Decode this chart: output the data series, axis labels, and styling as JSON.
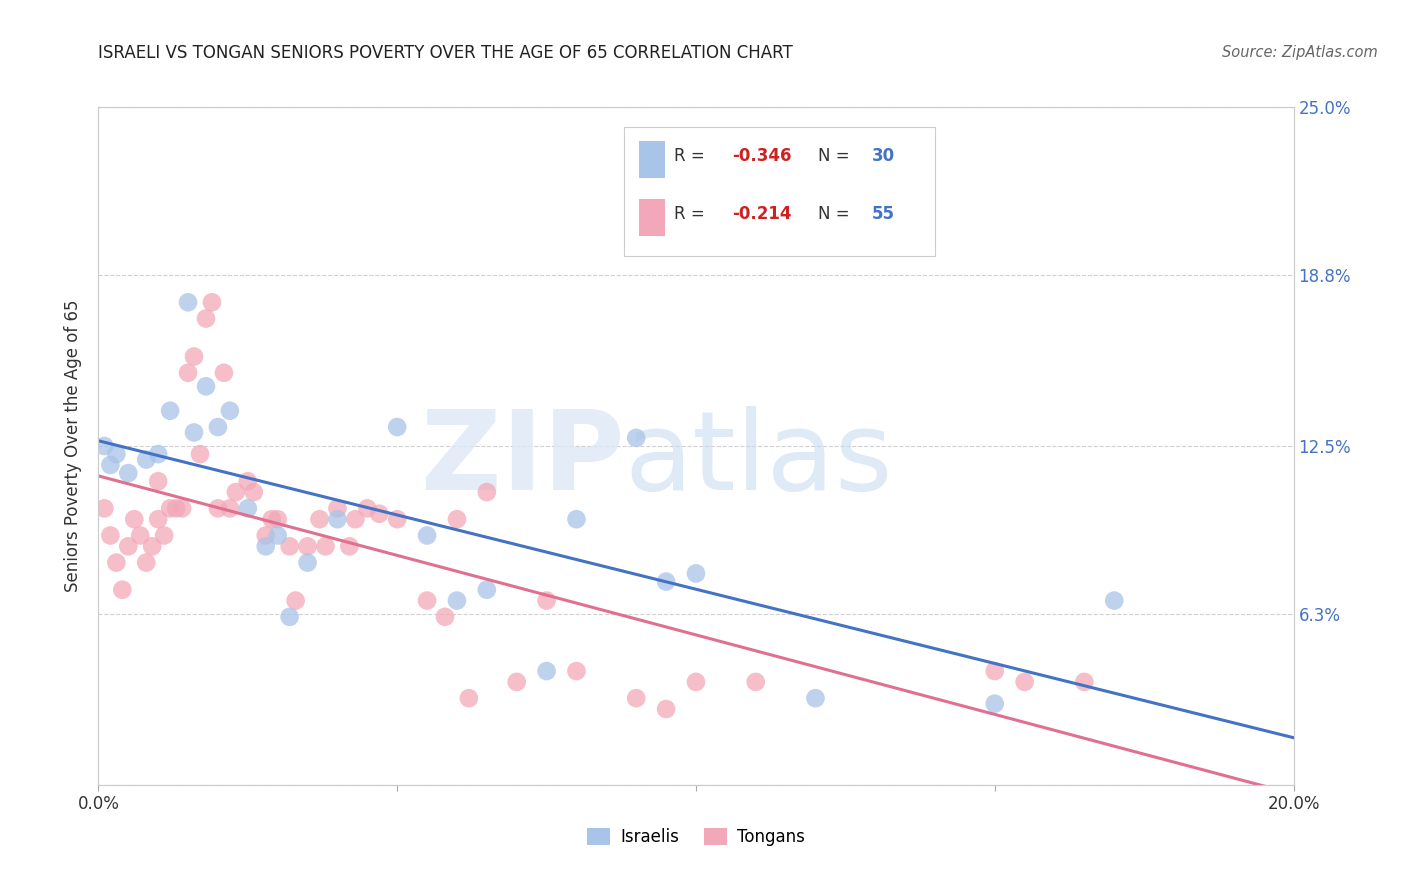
{
  "title": "ISRAELI VS TONGAN SENIORS POVERTY OVER THE AGE OF 65 CORRELATION CHART",
  "source": "Source: ZipAtlas.com",
  "ylabel": "Seniors Poverty Over the Age of 65",
  "xlim": [
    0.0,
    0.2
  ],
  "ylim": [
    0.0,
    0.25
  ],
  "yticks": [
    0.0,
    0.063,
    0.125,
    0.188,
    0.25
  ],
  "ytick_labels_right": [
    "",
    "6.3%",
    "12.5%",
    "18.8%",
    "25.0%"
  ],
  "xticks": [
    0.0,
    0.05,
    0.1,
    0.15,
    0.2
  ],
  "xtick_labels": [
    "0.0%",
    "",
    "",
    "",
    "20.0%"
  ],
  "watermark_zip": "ZIP",
  "watermark_atlas": "atlas",
  "legend_R_israeli": "-0.346",
  "legend_N_israeli": "30",
  "legend_R_tongan": "-0.214",
  "legend_N_tongan": "55",
  "israeli_color": "#a8c4e8",
  "tongan_color": "#f2a8b8",
  "israeli_line_color": "#4472c4",
  "tongan_line_color": "#e07090",
  "israeli_x": [
    0.001,
    0.002,
    0.003,
    0.005,
    0.008,
    0.01,
    0.012,
    0.015,
    0.016,
    0.018,
    0.02,
    0.022,
    0.025,
    0.028,
    0.03,
    0.032,
    0.035,
    0.04,
    0.05,
    0.055,
    0.06,
    0.065,
    0.075,
    0.08,
    0.09,
    0.095,
    0.1,
    0.12,
    0.15,
    0.17
  ],
  "israeli_y": [
    0.125,
    0.118,
    0.122,
    0.115,
    0.12,
    0.122,
    0.138,
    0.178,
    0.13,
    0.147,
    0.132,
    0.138,
    0.102,
    0.088,
    0.092,
    0.062,
    0.082,
    0.098,
    0.132,
    0.092,
    0.068,
    0.072,
    0.042,
    0.098,
    0.128,
    0.075,
    0.078,
    0.032,
    0.03,
    0.068
  ],
  "tongan_x": [
    0.001,
    0.002,
    0.003,
    0.004,
    0.005,
    0.006,
    0.007,
    0.008,
    0.009,
    0.01,
    0.01,
    0.011,
    0.012,
    0.013,
    0.014,
    0.015,
    0.016,
    0.017,
    0.018,
    0.019,
    0.02,
    0.021,
    0.022,
    0.023,
    0.025,
    0.026,
    0.028,
    0.029,
    0.03,
    0.032,
    0.033,
    0.035,
    0.037,
    0.038,
    0.04,
    0.042,
    0.043,
    0.045,
    0.047,
    0.05,
    0.055,
    0.058,
    0.06,
    0.062,
    0.065,
    0.07,
    0.075,
    0.08,
    0.09,
    0.095,
    0.1,
    0.11,
    0.15,
    0.155,
    0.165
  ],
  "tongan_y": [
    0.102,
    0.092,
    0.082,
    0.072,
    0.088,
    0.098,
    0.092,
    0.082,
    0.088,
    0.112,
    0.098,
    0.092,
    0.102,
    0.102,
    0.102,
    0.152,
    0.158,
    0.122,
    0.172,
    0.178,
    0.102,
    0.152,
    0.102,
    0.108,
    0.112,
    0.108,
    0.092,
    0.098,
    0.098,
    0.088,
    0.068,
    0.088,
    0.098,
    0.088,
    0.102,
    0.088,
    0.098,
    0.102,
    0.1,
    0.098,
    0.068,
    0.062,
    0.098,
    0.032,
    0.108,
    0.038,
    0.068,
    0.042,
    0.032,
    0.028,
    0.038,
    0.038,
    0.042,
    0.038,
    0.038
  ],
  "background_color": "#ffffff",
  "grid_color": "#d0d0d0",
  "title_fontsize": 12,
  "label_fontsize": 12,
  "tick_fontsize": 12
}
